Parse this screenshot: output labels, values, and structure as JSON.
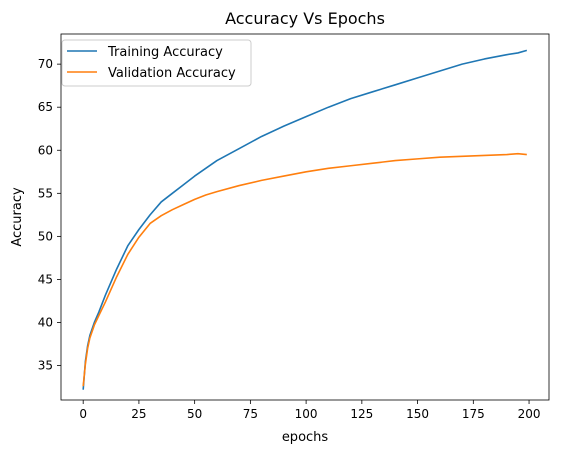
{
  "chart_data": {
    "type": "line",
    "title": "Accuracy Vs Epochs",
    "xlabel": "epochs",
    "ylabel": "Accuracy",
    "xlim": [
      -9.95,
      208.95
    ],
    "ylim": [
      31.0,
      73.5
    ],
    "xticks": [
      0,
      25,
      50,
      75,
      100,
      125,
      150,
      175,
      200
    ],
    "yticks": [
      35,
      40,
      45,
      50,
      55,
      60,
      65,
      70
    ],
    "grid": false,
    "legend_position": "top-left",
    "series": [
      {
        "name": "Training Accuracy",
        "color": "#1f77b4",
        "x": [
          0,
          1,
          2,
          3,
          5,
          7,
          10,
          15,
          20,
          25,
          30,
          35,
          40,
          45,
          50,
          55,
          60,
          70,
          80,
          90,
          100,
          110,
          120,
          130,
          140,
          150,
          160,
          170,
          180,
          190,
          195,
          199
        ],
        "y": [
          32.2,
          35.5,
          37.3,
          38.5,
          40.0,
          41.2,
          43.2,
          46.2,
          48.9,
          50.8,
          52.5,
          54.0,
          55.0,
          56.0,
          57.0,
          57.9,
          58.8,
          60.2,
          61.6,
          62.8,
          63.9,
          65.0,
          66.0,
          66.8,
          67.6,
          68.4,
          69.2,
          70.0,
          70.6,
          71.1,
          71.3,
          71.6
        ]
      },
      {
        "name": "Validation Accuracy",
        "color": "#ff7f0e",
        "x": [
          0,
          1,
          2,
          3,
          5,
          7,
          10,
          15,
          20,
          25,
          30,
          35,
          40,
          45,
          50,
          55,
          60,
          70,
          80,
          90,
          100,
          110,
          120,
          130,
          140,
          150,
          160,
          170,
          180,
          190,
          195,
          199
        ],
        "y": [
          32.6,
          35.2,
          37.0,
          38.2,
          39.7,
          40.8,
          42.4,
          45.3,
          47.9,
          49.9,
          51.5,
          52.4,
          53.1,
          53.7,
          54.3,
          54.8,
          55.2,
          55.9,
          56.5,
          57.0,
          57.5,
          57.9,
          58.2,
          58.5,
          58.8,
          59.0,
          59.2,
          59.3,
          59.4,
          59.5,
          59.6,
          59.5
        ]
      }
    ]
  }
}
